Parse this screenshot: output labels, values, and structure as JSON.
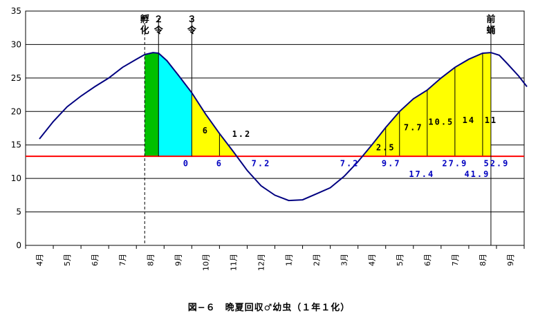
{
  "chart_data": {
    "type": "line",
    "caption": "図−６　晩夏回収♂幼虫（１年１化）",
    "y_ticks": [
      "35",
      "30",
      "25",
      "20",
      "15",
      "10",
      "5",
      "0"
    ],
    "ylim": [
      0,
      35
    ],
    "grid": true,
    "x_tick_labels": [
      "4月",
      "5月",
      "6月",
      "7月",
      "8月",
      "9月",
      "10月",
      "11月",
      "12月",
      "1月",
      "2月",
      "3月",
      "4月",
      "5月",
      "6月",
      "7月",
      "8月",
      "9月"
    ],
    "threshold": 13.3,
    "series": [
      {
        "color": "#000080",
        "x": [
          0.0,
          0.5,
          1.0,
          1.5,
          2.0,
          2.5,
          3.0,
          3.5,
          3.8,
          4.1,
          4.3,
          4.6,
          5.0,
          5.5,
          6.0,
          6.5,
          7.0,
          7.5,
          8.0,
          8.5,
          9.0,
          9.5,
          10.0,
          10.5,
          11.0,
          11.5,
          12.0,
          12.5,
          13.0,
          13.5,
          14.0,
          14.5,
          15.0,
          15.5,
          16.0,
          16.3,
          16.6,
          16.9,
          17.3,
          17.6
        ],
        "y": [
          15.9,
          18.5,
          20.7,
          22.3,
          23.7,
          25.0,
          26.6,
          27.8,
          28.5,
          28.8,
          28.7,
          27.6,
          25.5,
          22.8,
          19.6,
          16.7,
          14.0,
          11.2,
          8.9,
          7.5,
          6.7,
          6.8,
          7.7,
          8.6,
          10.3,
          12.5,
          15.0,
          17.6,
          20.0,
          21.9,
          23.2,
          25.0,
          26.6,
          27.8,
          28.7,
          28.8,
          28.4,
          27.1,
          25.3,
          23.7
        ]
      }
    ],
    "shaded_regions": [
      {
        "from": 3.8,
        "to": 4.3,
        "color": "#00c000"
      },
      {
        "from": 4.3,
        "to": 5.5,
        "color": "#00ffff"
      },
      {
        "from": 5.5,
        "to": 7.6,
        "color": "#ffff00"
      },
      {
        "from": 11.4,
        "to": 16.3,
        "color": "#ffff00"
      }
    ],
    "vertical_markers": [
      {
        "x": 3.8,
        "label": [
          "孵",
          "化"
        ],
        "dashed": true,
        "bottom": 0
      },
      {
        "x": 4.3,
        "label": [
          "２",
          "令"
        ],
        "dashed": false,
        "bottom": 13.3
      },
      {
        "x": 5.5,
        "label": [
          "３",
          "令"
        ],
        "dashed": false,
        "bottom": 13.3
      },
      {
        "x": 16.3,
        "label": [
          "前",
          "蛹"
        ],
        "dashed": false,
        "bottom": 0
      }
    ],
    "region_dividers": [
      6.5,
      12.5,
      13.0,
      14.0,
      15.0,
      16.0
    ],
    "annotations": [
      {
        "text": "6",
        "x": 6.0,
        "y": 16.7,
        "color": "#000000"
      },
      {
        "text": "1.2",
        "x": 7.3,
        "y": 16.2,
        "color": "#000000"
      },
      {
        "text": "2.5",
        "x": 12.5,
        "y": 14.2,
        "color": "#000000"
      },
      {
        "text": "7.7",
        "x": 13.5,
        "y": 17.2,
        "color": "#000000"
      },
      {
        "text": "10.5",
        "x": 14.5,
        "y": 18.0,
        "color": "#000000"
      },
      {
        "text": "14",
        "x": 15.5,
        "y": 18.3,
        "color": "#000000"
      },
      {
        "text": "11",
        "x": 16.3,
        "y": 18.3,
        "color": "#000000"
      },
      {
        "text": "0",
        "x": 5.3,
        "y": 11.8,
        "color": "#0000c0"
      },
      {
        "text": "6",
        "x": 6.5,
        "y": 11.8,
        "color": "#0000c0"
      },
      {
        "text": "7.2",
        "x": 8.0,
        "y": 11.8,
        "color": "#0000c0"
      },
      {
        "text": "7.2",
        "x": 11.2,
        "y": 11.8,
        "color": "#0000c0"
      },
      {
        "text": "9.7",
        "x": 12.7,
        "y": 11.8,
        "color": "#0000c0"
      },
      {
        "text": "17.4",
        "x": 13.8,
        "y": 10.2,
        "color": "#0000c0"
      },
      {
        "text": "27.9",
        "x": 15.0,
        "y": 11.8,
        "color": "#0000c0"
      },
      {
        "text": "41.9",
        "x": 15.8,
        "y": 10.2,
        "color": "#0000c0"
      },
      {
        "text": "52.9",
        "x": 16.5,
        "y": 11.8,
        "color": "#0000c0"
      }
    ]
  }
}
